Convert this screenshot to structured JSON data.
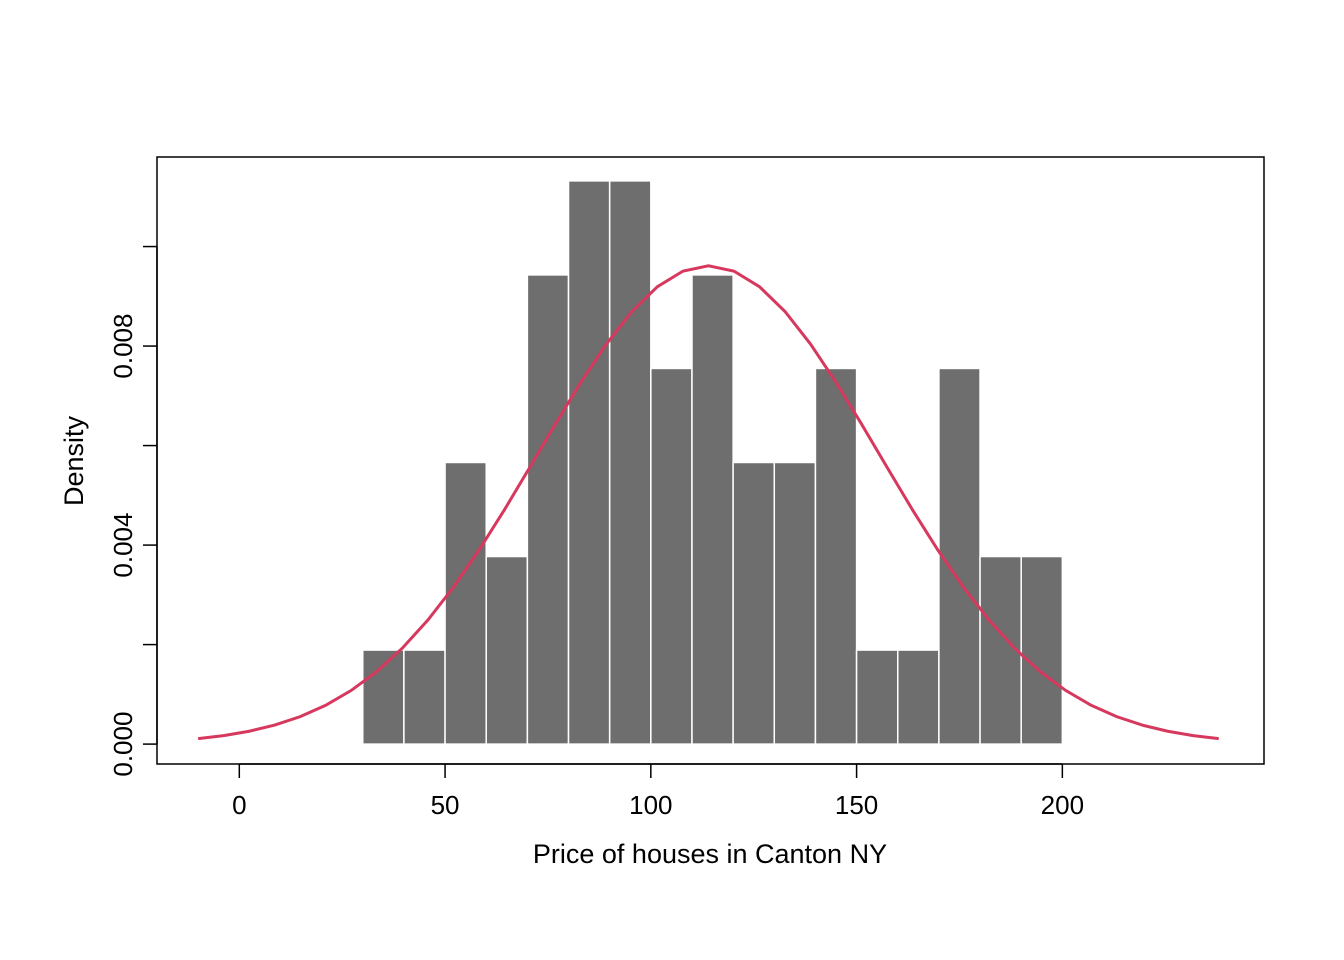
{
  "chart_data": {
    "type": "bar",
    "title": "",
    "xlabel": "Price of houses in Canton NY",
    "ylabel": "Density",
    "bin_edges": [
      30,
      40,
      50,
      60,
      70,
      80,
      90,
      100,
      110,
      120,
      130,
      140,
      150,
      160,
      170,
      180,
      190,
      200
    ],
    "values": [
      0.00189,
      0.00189,
      0.00566,
      0.00377,
      0.00943,
      0.01132,
      0.01132,
      0.00755,
      0.00943,
      0.00566,
      0.00566,
      0.00755,
      0.00189,
      0.00189,
      0.00755,
      0.00377,
      0.00377
    ],
    "density_curve": {
      "type": "normal",
      "mean": 114,
      "sd": 41.5,
      "x_range": [
        -10,
        238
      ],
      "color": "#D6385E"
    },
    "bar_color": "#6E6E6E",
    "bar_edge_color": "#FFFFFF",
    "xlim": [
      -20,
      249
    ],
    "ylim": [
      -0.0004,
      0.0118
    ],
    "x_ticks": [
      "0",
      "50",
      "100",
      "150",
      "200"
    ],
    "x_tick_values": [
      0,
      50,
      100,
      150,
      200
    ],
    "y_ticks": [
      "0.000",
      "0.004",
      "0.008"
    ],
    "y_tick_values": [
      0.0,
      0.004,
      0.008
    ],
    "y_minor_tick_values": [
      0.002,
      0.006,
      0.01
    ],
    "grid": false,
    "legend": "none"
  }
}
